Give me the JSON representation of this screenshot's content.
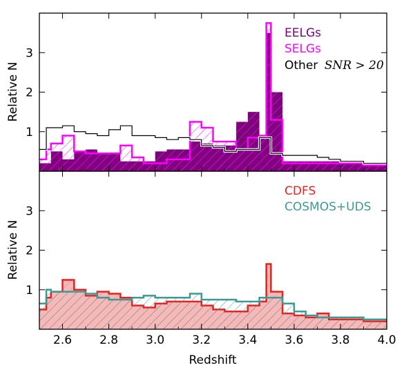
{
  "chart_data": [
    {
      "type": "histogram",
      "panel": "top",
      "ylabel": "Relative N",
      "xlim": [
        2.5,
        4.0
      ],
      "ylim": [
        0,
        4
      ],
      "yticks": [
        1,
        2,
        3
      ],
      "bin_edges": [
        2.5,
        2.53,
        2.55,
        2.6,
        2.65,
        2.7,
        2.75,
        2.8,
        2.85,
        2.9,
        2.95,
        3.0,
        3.05,
        3.1,
        3.15,
        3.2,
        3.25,
        3.3,
        3.35,
        3.4,
        3.45,
        3.48,
        3.5,
        3.55,
        3.6,
        3.65,
        3.7,
        3.75,
        3.8,
        3.85,
        3.9,
        3.95,
        4.0
      ],
      "legend_position": "top-right",
      "series": [
        {
          "name": "EELGs",
          "color": "#800080",
          "style": "filled",
          "values": [
            0.2,
            0.2,
            0.5,
            0.3,
            0.5,
            0.55,
            0.45,
            0.45,
            0.25,
            0.25,
            0.25,
            0.5,
            0.55,
            0.55,
            0.75,
            0.7,
            0.65,
            0.65,
            1.25,
            1.5,
            0.9,
            3.5,
            2.0,
            0.25,
            0.25,
            0.25,
            0.25,
            0.25,
            0.25,
            0.25,
            0.15,
            0.15
          ]
        },
        {
          "name": "SELGs",
          "color": "#ff00ff",
          "style": "hatched",
          "values": [
            0.3,
            0.55,
            0.7,
            0.9,
            0.5,
            0.45,
            0.45,
            0.45,
            0.65,
            0.35,
            0.2,
            0.2,
            0.3,
            0.3,
            1.25,
            1.1,
            0.75,
            0.75,
            0.55,
            0.85,
            0.9,
            3.75,
            1.3,
            0.2,
            0.2,
            0.2,
            0.2,
            0.2,
            0.2,
            0.2,
            0.15,
            0.15
          ]
        },
        {
          "name": "Other",
          "name_math": "SNR > 20",
          "color": "#000000",
          "style": "step",
          "values": [
            0.55,
            1.1,
            1.1,
            1.15,
            1.0,
            0.95,
            0.9,
            1.05,
            1.15,
            0.9,
            0.9,
            0.85,
            0.8,
            0.85,
            0.8,
            0.65,
            0.6,
            0.5,
            0.55,
            0.55,
            0.85,
            0.85,
            0.45,
            0.4,
            0.4,
            0.4,
            0.35,
            0.3,
            0.25,
            0.25,
            0.2,
            0.2
          ]
        }
      ]
    },
    {
      "type": "histogram",
      "panel": "bottom",
      "xlabel": "Redshift",
      "ylabel": "Relative N",
      "xlim": [
        2.5,
        4.0
      ],
      "ylim": [
        0,
        4
      ],
      "yticks": [
        1,
        2,
        3
      ],
      "xticks": [
        2.6,
        2.8,
        3.0,
        3.2,
        3.4,
        3.6,
        3.8,
        4.0
      ],
      "xticklabels": [
        "2.6",
        "2.8",
        "3.0",
        "3.2",
        "3.4",
        "3.6",
        "3.8",
        "4.0"
      ],
      "bin_edges": [
        2.5,
        2.53,
        2.55,
        2.6,
        2.65,
        2.7,
        2.75,
        2.8,
        2.85,
        2.9,
        2.95,
        3.0,
        3.05,
        3.1,
        3.15,
        3.2,
        3.25,
        3.3,
        3.35,
        3.4,
        3.45,
        3.48,
        3.5,
        3.55,
        3.6,
        3.65,
        3.7,
        3.75,
        3.8,
        3.85,
        3.9,
        3.95,
        4.0
      ],
      "legend_position": "top-right",
      "series": [
        {
          "name": "CDFS",
          "color": "#e8211e",
          "fill": "#f9b8b8",
          "style": "filled",
          "values": [
            0.5,
            0.8,
            0.95,
            1.25,
            1.0,
            0.85,
            0.95,
            0.9,
            0.8,
            0.6,
            0.55,
            0.65,
            0.7,
            0.7,
            0.7,
            0.6,
            0.5,
            0.45,
            0.45,
            0.6,
            0.7,
            1.65,
            0.95,
            0.4,
            0.35,
            0.3,
            0.4,
            0.25,
            0.25,
            0.25,
            0.2,
            0.2
          ]
        },
        {
          "name": "COSMOS+UDS",
          "color": "#3a9a96",
          "style": "hatched",
          "values": [
            0.65,
            1.0,
            0.95,
            0.95,
            0.95,
            0.9,
            0.8,
            0.75,
            0.75,
            0.8,
            0.85,
            0.8,
            0.8,
            0.8,
            0.9,
            0.75,
            0.75,
            0.75,
            0.7,
            0.7,
            0.8,
            0.8,
            0.8,
            0.65,
            0.45,
            0.35,
            0.3,
            0.3,
            0.3,
            0.3,
            0.25,
            0.25
          ]
        }
      ]
    }
  ]
}
